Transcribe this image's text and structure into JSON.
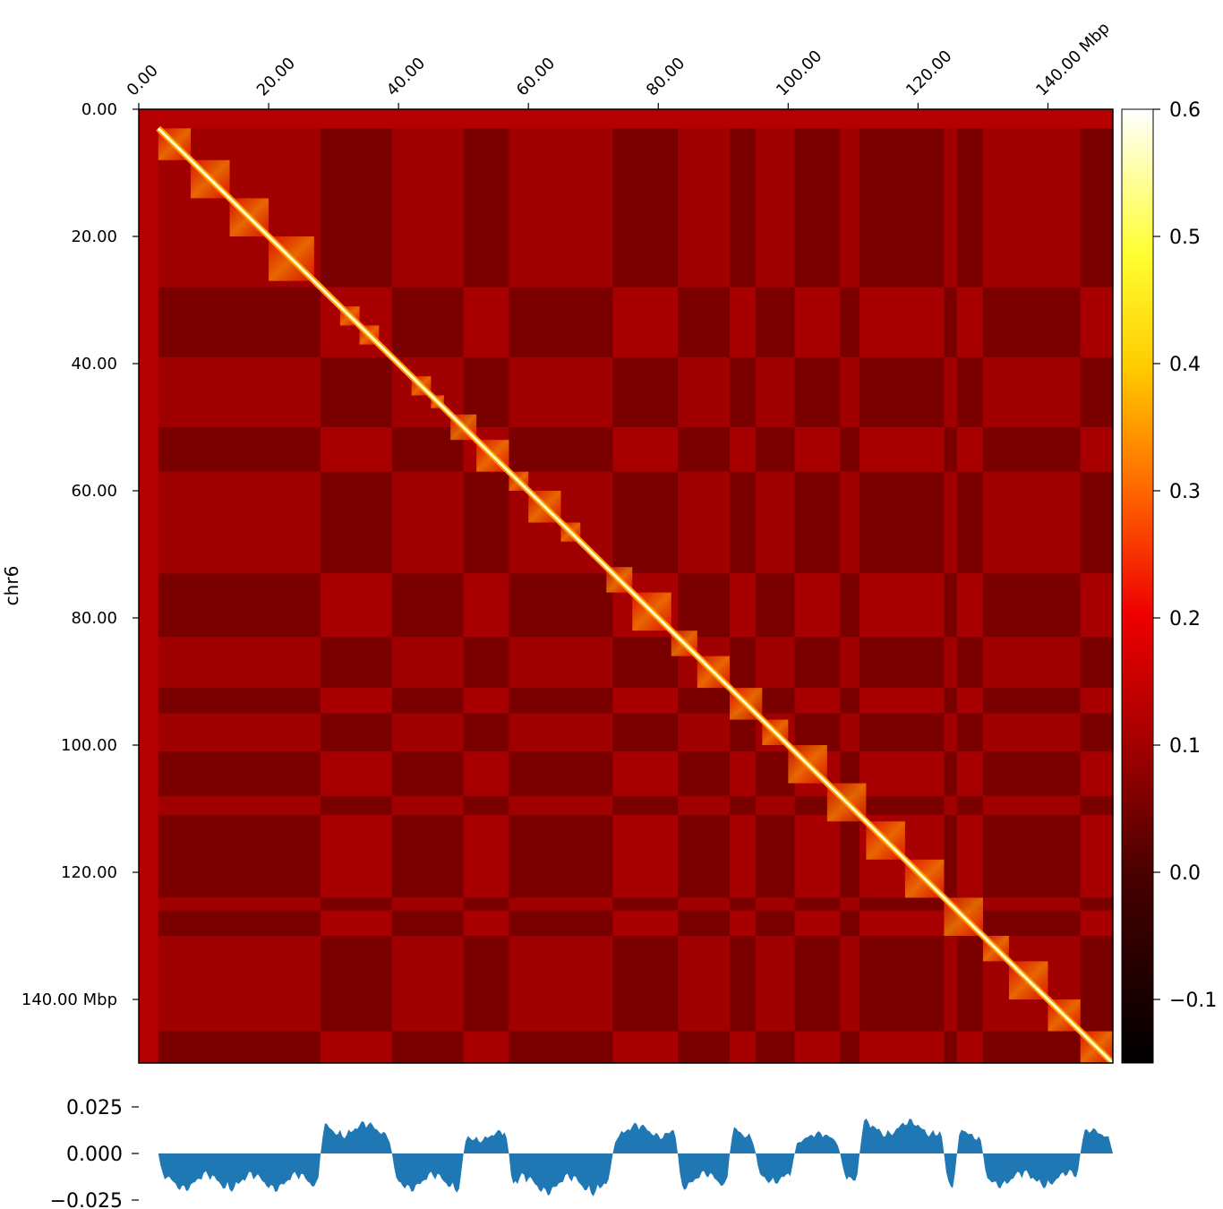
{
  "chart_data": [
    {
      "type": "heatmap",
      "chromosome": "chr6",
      "unit": "Mbp",
      "x_ticks": [
        "0.00",
        "20.00",
        "40.00",
        "60.00",
        "80.00",
        "100.00",
        "120.00",
        "140.00"
      ],
      "y_ticks": [
        "0.00",
        "20.00",
        "40.00",
        "60.00",
        "80.00",
        "100.00",
        "120.00",
        "140.00"
      ],
      "x_tick_values": [
        0,
        20,
        40,
        60,
        80,
        100,
        120,
        140
      ],
      "y_tick_values": [
        0,
        20,
        40,
        60,
        80,
        100,
        120,
        140
      ],
      "xlim": [
        0,
        150
      ],
      "ylim": [
        0,
        150
      ],
      "ylabel": "chr6",
      "colormap": "afmhot-like (black → dark red → red → orange → yellow → white)",
      "colorbar": {
        "range": [
          -0.15,
          0.6
        ],
        "ticks": [
          -0.1,
          0.0,
          0.1,
          0.2,
          0.3,
          0.4,
          0.5,
          0.6
        ],
        "tick_labels": [
          "−0.1",
          "0.0",
          "0.1",
          "0.2",
          "0.3",
          "0.4",
          "0.5",
          "0.6"
        ]
      },
      "colors": {
        "background": "#b40000",
        "diagonal": "#ffffc8",
        "compartment_A": "#9c0000",
        "compartment_B": "#7a0000"
      },
      "compartment_boundaries_mbp": [
        3,
        28,
        39,
        50,
        57,
        73,
        83,
        91,
        95,
        101,
        108,
        111,
        124,
        126,
        130,
        145,
        150
      ],
      "compartment_signs": [
        -1,
        1,
        -1,
        1,
        -1,
        1,
        -1,
        1,
        -1,
        1,
        -1,
        1,
        -1,
        1,
        -1,
        1
      ],
      "tads_mbp": [
        [
          3,
          8
        ],
        [
          8,
          14
        ],
        [
          14,
          20
        ],
        [
          20,
          27
        ],
        [
          31,
          34
        ],
        [
          34,
          37
        ],
        [
          42,
          45
        ],
        [
          45,
          47
        ],
        [
          48,
          52
        ],
        [
          52,
          57
        ],
        [
          57,
          60
        ],
        [
          60,
          65
        ],
        [
          65,
          68
        ],
        [
          72,
          76
        ],
        [
          76,
          82
        ],
        [
          82,
          86
        ],
        [
          86,
          91
        ],
        [
          91,
          96
        ],
        [
          96,
          100
        ],
        [
          100,
          106
        ],
        [
          106,
          112
        ],
        [
          112,
          118
        ],
        [
          118,
          124
        ],
        [
          124,
          130
        ],
        [
          130,
          134
        ],
        [
          134,
          140
        ],
        [
          140,
          145
        ],
        [
          145,
          150
        ]
      ]
    },
    {
      "type": "area",
      "x_range_mbp": [
        3,
        150
      ],
      "yticks": [
        -0.025,
        0.0,
        0.025
      ],
      "ytick_labels": [
        "−0.025",
        "0.000",
        "0.025"
      ],
      "ylim": [
        -0.03,
        0.03
      ],
      "color": "#1f77b4",
      "segments": [
        {
          "start": 3,
          "end": 28,
          "sign": -1,
          "level": 0.021
        },
        {
          "start": 28,
          "end": 39,
          "sign": 1,
          "level": 0.018
        },
        {
          "start": 39,
          "end": 50,
          "sign": -1,
          "level": 0.021
        },
        {
          "start": 50,
          "end": 57,
          "sign": 1,
          "level": 0.013
        },
        {
          "start": 57,
          "end": 73,
          "sign": -1,
          "level": 0.023
        },
        {
          "start": 73,
          "end": 83,
          "sign": 1,
          "level": 0.017
        },
        {
          "start": 83,
          "end": 91,
          "sign": -1,
          "level": 0.02
        },
        {
          "start": 91,
          "end": 95,
          "sign": 1,
          "level": 0.016
        },
        {
          "start": 95,
          "end": 101,
          "sign": -1,
          "level": 0.017
        },
        {
          "start": 101,
          "end": 108,
          "sign": 1,
          "level": 0.012
        },
        {
          "start": 108,
          "end": 111,
          "sign": -1,
          "level": 0.02
        },
        {
          "start": 111,
          "end": 124,
          "sign": 1,
          "level": 0.019
        },
        {
          "start": 124,
          "end": 126,
          "sign": -1,
          "level": 0.019
        },
        {
          "start": 126,
          "end": 130,
          "sign": 1,
          "level": 0.016
        },
        {
          "start": 130,
          "end": 145,
          "sign": -1,
          "level": 0.019
        },
        {
          "start": 145,
          "end": 150,
          "sign": 1,
          "level": 0.014
        }
      ]
    }
  ]
}
